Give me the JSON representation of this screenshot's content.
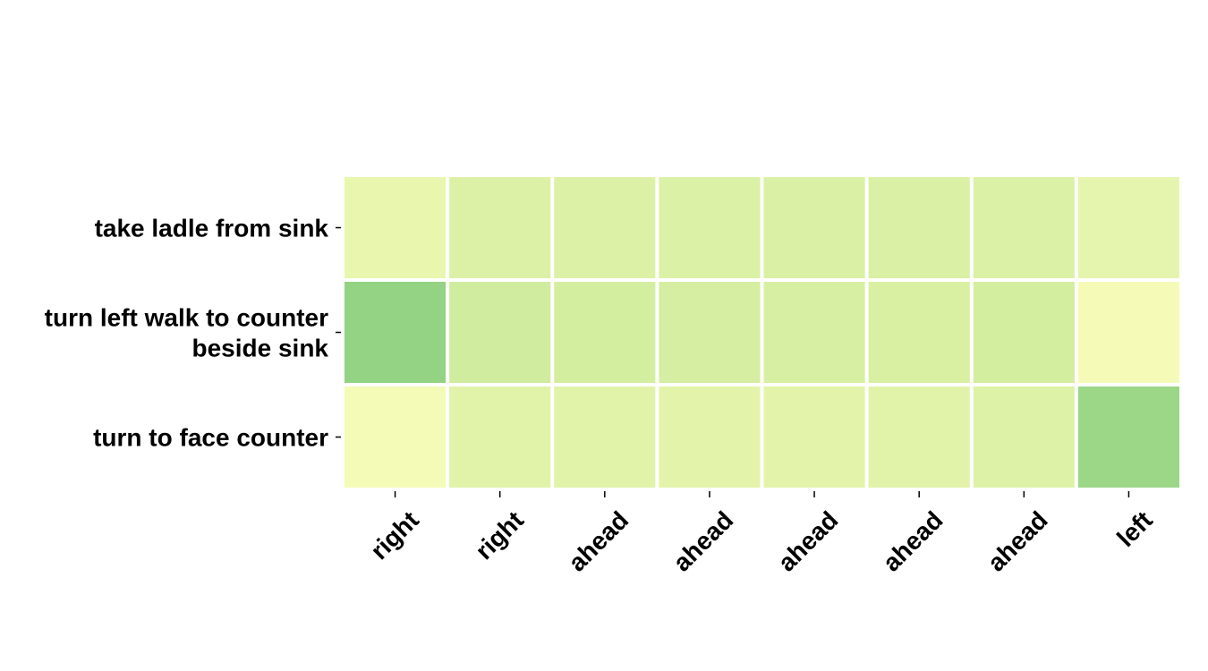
{
  "chart_data": {
    "type": "heatmap",
    "rows": [
      [
        "take ladle from sink"
      ],
      [
        "turn left walk to counter",
        "beside sink"
      ],
      [
        "turn to face counter"
      ]
    ],
    "columns": [
      "right",
      "right",
      "ahead",
      "ahead",
      "ahead",
      "ahead",
      "ahead",
      "left"
    ],
    "values": [
      [
        0.12,
        0.22,
        0.22,
        0.23,
        0.24,
        0.24,
        0.23,
        0.14
      ],
      [
        0.62,
        0.3,
        0.28,
        0.27,
        0.26,
        0.25,
        0.28,
        0.02
      ],
      [
        0.03,
        0.18,
        0.18,
        0.17,
        0.17,
        0.18,
        0.21,
        0.58
      ]
    ],
    "colormap": [
      "#f7fcb9",
      "#d9f0a3",
      "#addd8e",
      "#78c679",
      "#41ab5d"
    ],
    "vmin": 0,
    "vmax": 1,
    "cell_gap_color": "#ffffff"
  }
}
